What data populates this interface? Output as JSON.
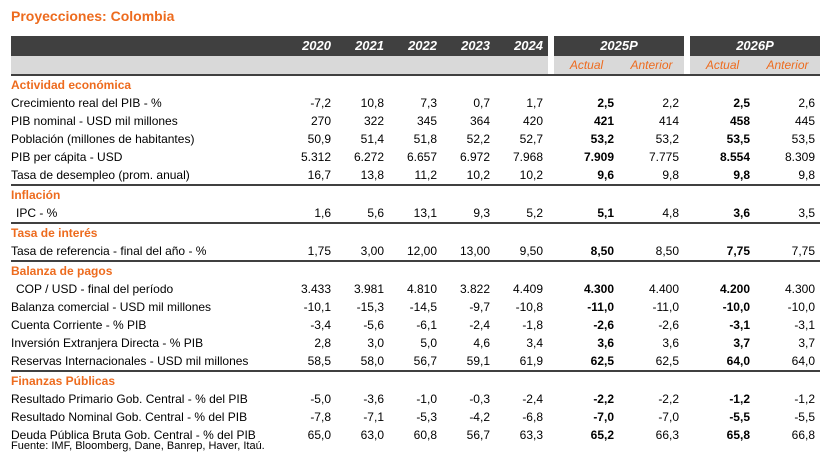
{
  "title": "Proyecciones: Colombia",
  "years": [
    "2020",
    "2021",
    "2022",
    "2023",
    "2024"
  ],
  "projections": [
    "2025P",
    "2026P"
  ],
  "subheaders": {
    "actual": "Actual",
    "anterior": "Anterior"
  },
  "sections": [
    {
      "name": "Actividad económica",
      "rows": [
        {
          "label": "Crecimiento real del PIB - %",
          "values": [
            "-7,2",
            "10,8",
            "7,3",
            "0,7",
            "1,7"
          ],
          "p25a": "2,5",
          "p25b": "2,2",
          "p26a": "2,5",
          "p26b": "2,6"
        },
        {
          "label": "PIB nominal - USD mil millones",
          "values": [
            "270",
            "322",
            "345",
            "364",
            "420"
          ],
          "p25a": "421",
          "p25b": "414",
          "p26a": "458",
          "p26b": "445"
        },
        {
          "label": "Población (millones de habitantes)",
          "values": [
            "50,9",
            "51,4",
            "51,8",
            "52,2",
            "52,7"
          ],
          "p25a": "53,2",
          "p25b": "53,2",
          "p26a": "53,5",
          "p26b": "53,5"
        },
        {
          "label": "PIB per cápita - USD",
          "values": [
            "5.312",
            "6.272",
            "6.657",
            "6.972",
            "7.968"
          ],
          "p25a": "7.909",
          "p25b": "7.775",
          "p26a": "8.554",
          "p26b": "8.309"
        },
        {
          "label": "Tasa de desempleo (prom. anual)",
          "values": [
            "16,7",
            "13,8",
            "11,2",
            "10,2",
            "10,2"
          ],
          "p25a": "9,6",
          "p25b": "9,8",
          "p26a": "9,8",
          "p26b": "9,8"
        }
      ]
    },
    {
      "name": "Inflación",
      "rows": [
        {
          "label": "IPC - %",
          "indent": true,
          "values": [
            "1,6",
            "5,6",
            "13,1",
            "9,3",
            "5,2"
          ],
          "p25a": "5,1",
          "p25b": "4,8",
          "p26a": "3,6",
          "p26b": "3,5"
        }
      ]
    },
    {
      "name": "Tasa de interés",
      "rows": [
        {
          "label": "Tasa de referencia  - final del año - %",
          "values": [
            "1,75",
            "3,00",
            "12,00",
            "13,00",
            "9,50"
          ],
          "p25a": "8,50",
          "p25b": "8,50",
          "p26a": "7,75",
          "p26b": "7,75"
        }
      ]
    },
    {
      "name": "Balanza de pagos",
      "rows": [
        {
          "label": "COP / USD  - final del período",
          "indent": true,
          "values": [
            "3.433",
            "3.981",
            "4.810",
            "3.822",
            "4.409"
          ],
          "p25a": "4.300",
          "p25b": "4.400",
          "p26a": "4.200",
          "p26b": "4.300"
        },
        {
          "label": "Balanza comercial - USD mil millones",
          "values": [
            "-10,1",
            "-15,3",
            "-14,5",
            "-9,7",
            "-10,8"
          ],
          "p25a": "-11,0",
          "p25b": "-11,0",
          "p26a": "-10,0",
          "p26b": "-10,0"
        },
        {
          "label": "Cuenta Corriente - % PIB",
          "values": [
            "-3,4",
            "-5,6",
            "-6,1",
            "-2,4",
            "-1,8"
          ],
          "p25a": "-2,6",
          "p25b": "-2,6",
          "p26a": "-3,1",
          "p26b": "-3,1"
        },
        {
          "label": "Inversión Extranjera Directa - % PIB",
          "values": [
            "2,8",
            "3,0",
            "5,0",
            "4,6",
            "3,4"
          ],
          "p25a": "3,6",
          "p25b": "3,6",
          "p26a": "3,7",
          "p26b": "3,7"
        },
        {
          "label": "Reservas Internacionales - USD mil millones",
          "values": [
            "58,5",
            "58,0",
            "56,7",
            "59,1",
            "61,9"
          ],
          "p25a": "62,5",
          "p25b": "62,5",
          "p26a": "64,0",
          "p26b": "64,0"
        }
      ]
    },
    {
      "name": "Finanzas Públicas",
      "rows": [
        {
          "label": "Resultado Primario Gob. Central - % del PIB",
          "values": [
            "-5,0",
            "-3,6",
            "-1,0",
            "-0,3",
            "-2,4"
          ],
          "p25a": "-2,2",
          "p25b": "-2,2",
          "p26a": "-1,2",
          "p26b": "-1,2"
        },
        {
          "label": "Resultado Nominal Gob. Central - % del PIB",
          "values": [
            "-7,8",
            "-7,1",
            "-5,3",
            "-4,2",
            "-6,8"
          ],
          "p25a": "-7,0",
          "p25b": "-7,0",
          "p26a": "-5,5",
          "p26b": "-5,5"
        },
        {
          "label": "Deuda Pública Bruta Gob. Central - % del PIB",
          "values": [
            "65,0",
            "63,0",
            "60,8",
            "56,7",
            "63,3"
          ],
          "p25a": "65,2",
          "p25b": "66,3",
          "p26a": "65,8",
          "p26b": "66,8"
        }
      ]
    }
  ],
  "source": "Fuente: IMF, Bloomberg, Dane, Banrep, Haver, Itaú."
}
